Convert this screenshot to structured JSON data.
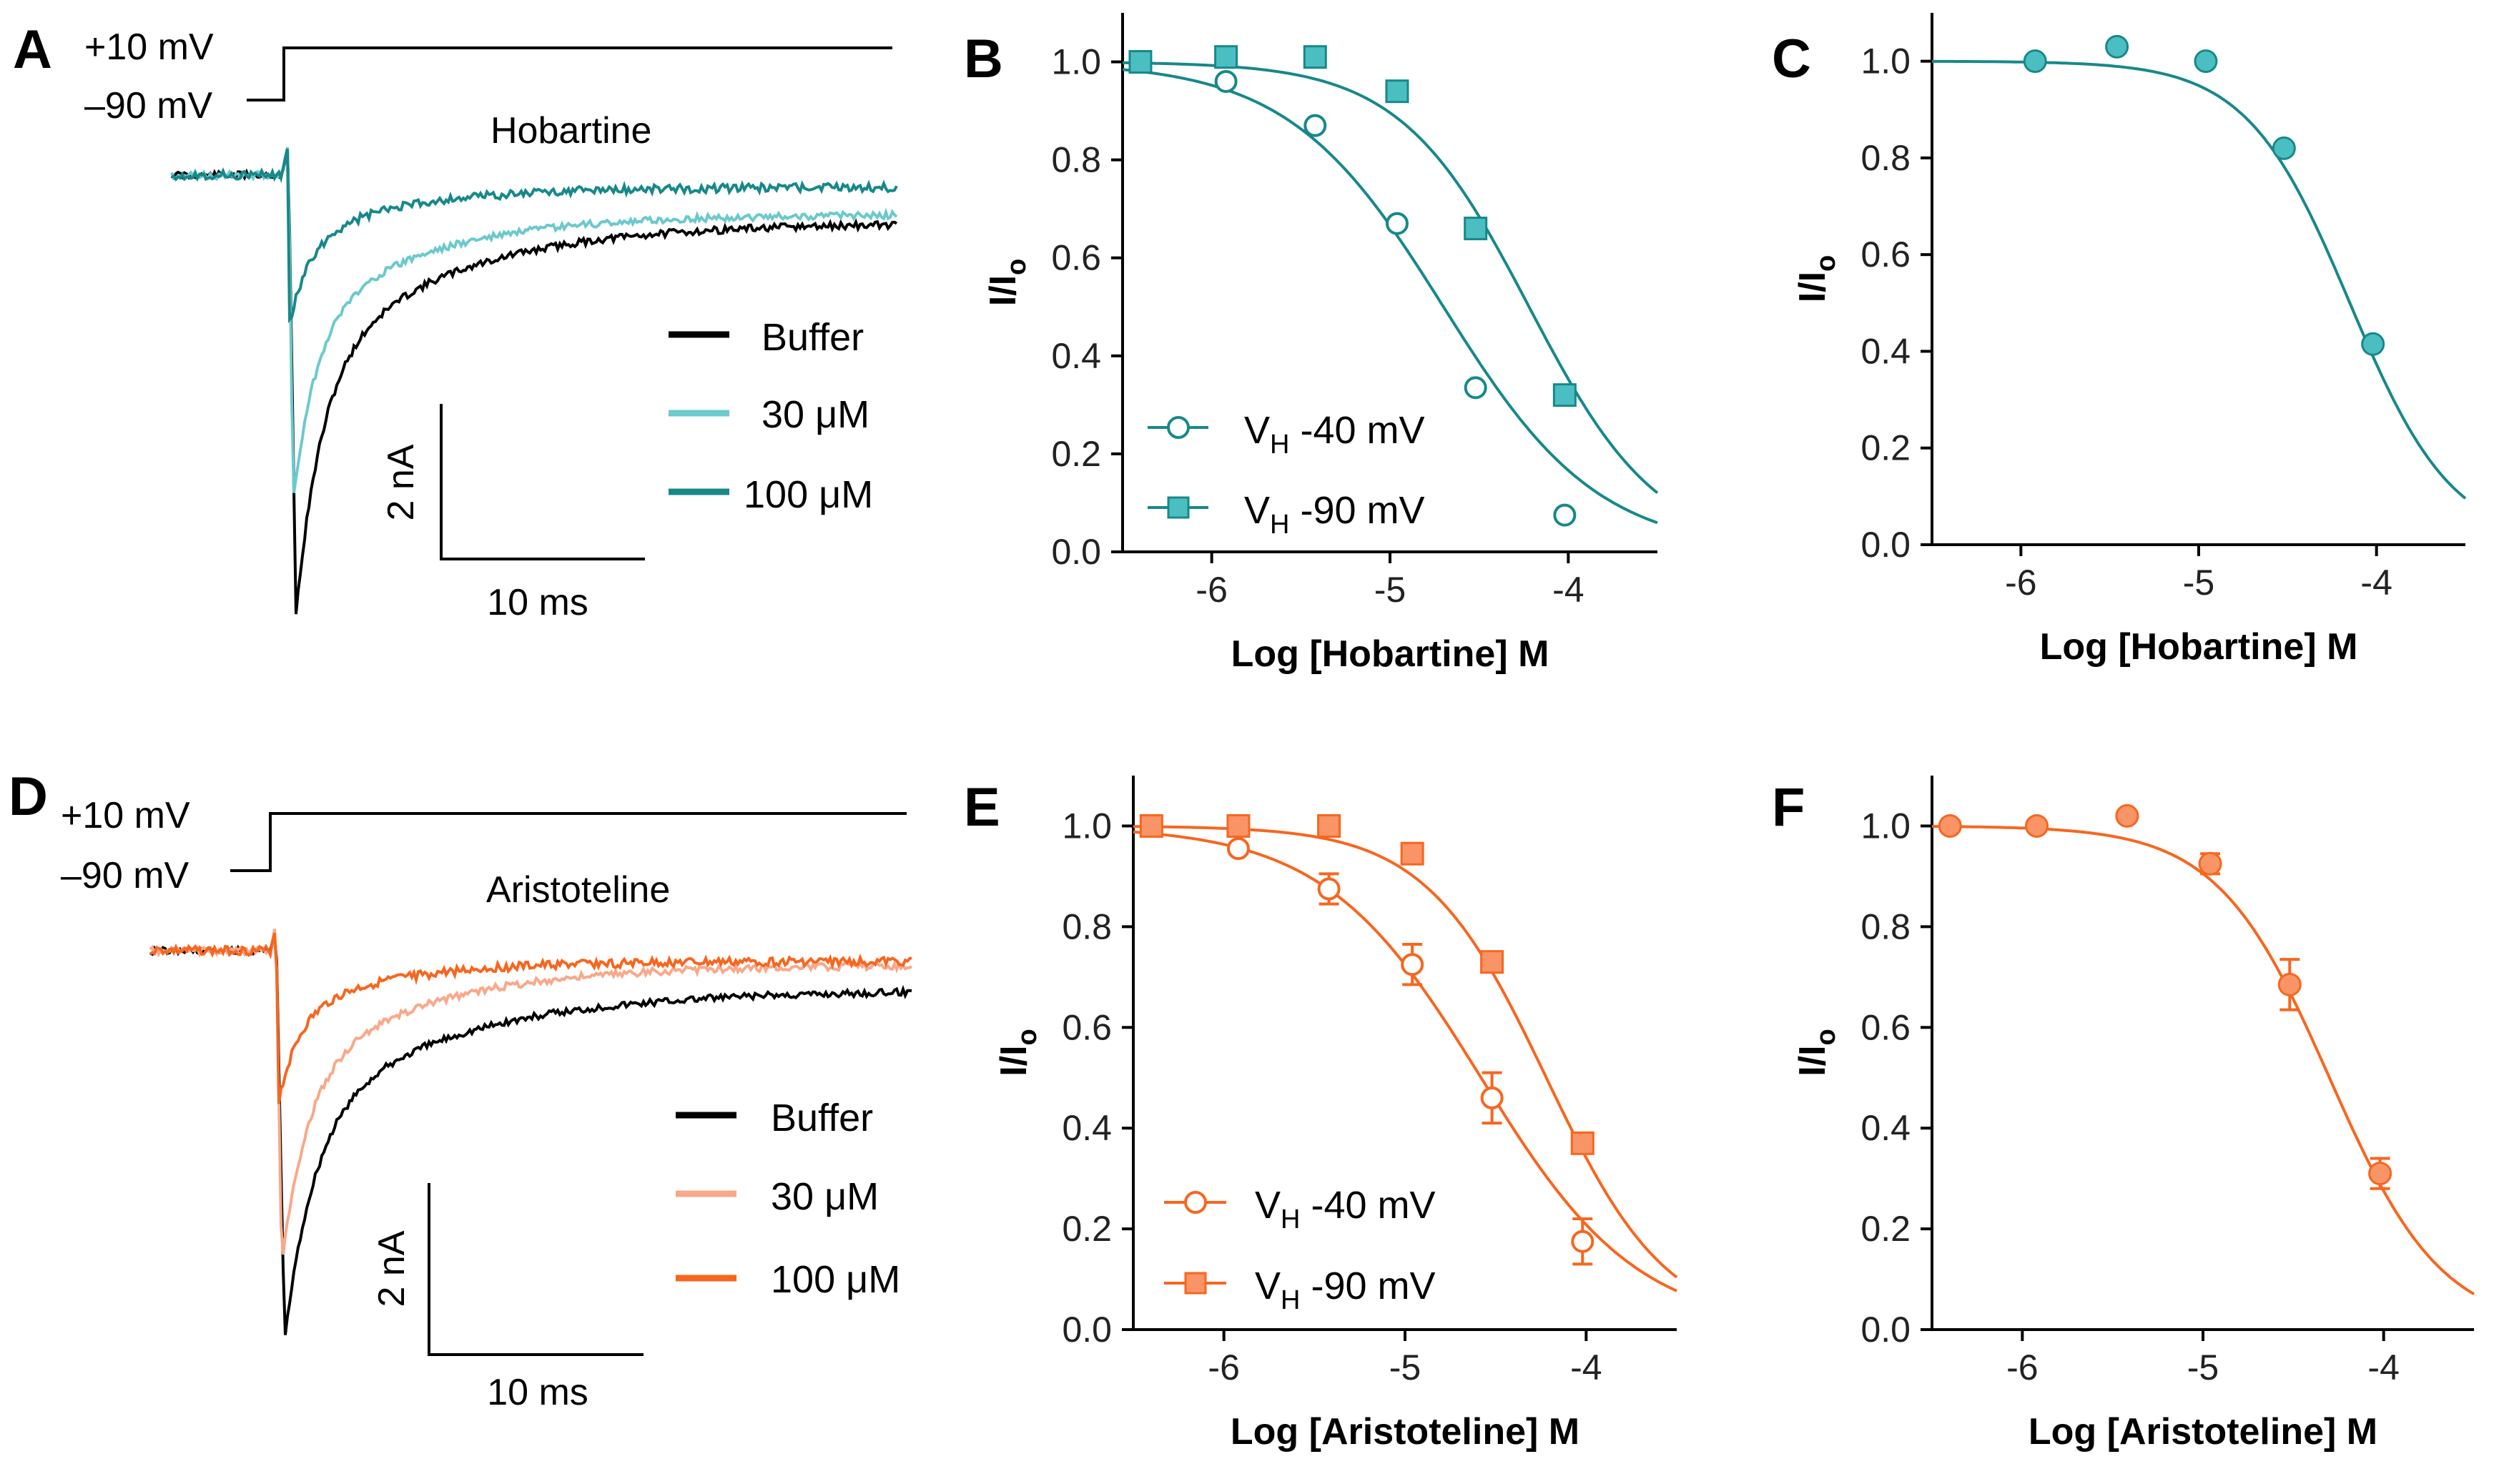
{
  "colors": {
    "teal": "#17888A",
    "teal_light": "#6CC9CC",
    "teal_fill": "#4BBEC2",
    "orange": "#F7661F",
    "orange_light": "#F9A88A",
    "orange_fill": "#F99466",
    "black": "#000000"
  },
  "panels": {
    "A": {
      "label": "A",
      "step_top": "+10 mV",
      "step_bottom": "–90 mV",
      "drug": "Hobartine",
      "legend": [
        "Buffer",
        "30 μM",
        "100 μM"
      ],
      "scale_y": "2 nA",
      "scale_x": "10 ms"
    },
    "D": {
      "label": "D",
      "step_top": "+10 mV",
      "step_bottom": "–90 mV",
      "drug": "Aristoteline",
      "legend": [
        "Buffer",
        "30 μM",
        "100 μM"
      ],
      "scale_y": "2 nA",
      "scale_x": "10 ms"
    },
    "B": {
      "label": "B"
    },
    "C": {
      "label": "C"
    },
    "E": {
      "label": "E"
    },
    "F": {
      "label": "F"
    }
  },
  "legend_curves": {
    "B": [
      {
        "v": "V",
        "sub": "H",
        "rest": " -40 mV"
      },
      {
        "v": "V",
        "sub": "H",
        "rest": " -90 mV"
      }
    ],
    "E": [
      {
        "v": "V",
        "sub": "H",
        "rest": " -40 mV"
      },
      {
        "v": "V",
        "sub": "H",
        "rest": " -90 mV"
      }
    ]
  },
  "chart_data": [
    {
      "id": "B",
      "type": "scatter",
      "title": "",
      "xlabel": "Log [Hobartine] M",
      "ylabel": "I/Io",
      "xlim": [
        -6.5,
        -3.5
      ],
      "ylim": [
        0,
        1.1
      ],
      "xticks": [
        -6,
        -5,
        -4
      ],
      "xtick_labels": [
        "-6",
        "-5",
        "-4"
      ],
      "yticks": [
        0,
        0.2,
        0.4,
        0.6,
        0.8,
        1.0
      ],
      "ytick_labels": [
        "0.0",
        "0.2",
        "0.4",
        "0.6",
        "0.8",
        "1.0"
      ],
      "series": [
        {
          "name": "VH -40 mV",
          "marker": "circle-open",
          "color": "teal",
          "x": [
            -6.4,
            -5.92,
            -5.42,
            -4.96,
            -4.52,
            -4.02
          ],
          "y": [
            1.0,
            0.96,
            0.87,
            0.67,
            0.335,
            0.075
          ],
          "fit_ic50_log": -4.7,
          "fit_hill": 1.0
        },
        {
          "name": "VH -90 mV",
          "marker": "square-filled",
          "color": "teal_fill",
          "x": [
            -6.4,
            -5.92,
            -5.42,
            -4.96,
            -4.52,
            -4.02
          ],
          "y": [
            1.0,
            1.01,
            1.01,
            0.94,
            0.66,
            0.32
          ],
          "fit_ic50_log": -4.22,
          "fit_hill": 1.2
        }
      ]
    },
    {
      "id": "C",
      "type": "scatter",
      "title": "",
      "xlabel": "Log [Hobartine] M",
      "ylabel": "I/Io",
      "xlim": [
        -6.5,
        -3.5
      ],
      "ylim": [
        0,
        1.1
      ],
      "xticks": [
        -6,
        -5,
        -4
      ],
      "xtick_labels": [
        "-6",
        "-5",
        "-4"
      ],
      "yticks": [
        0,
        0.2,
        0.4,
        0.6,
        0.8,
        1.0
      ],
      "ytick_labels": [
        "0.0",
        "0.2",
        "0.4",
        "0.6",
        "0.8",
        "1.0"
      ],
      "series": [
        {
          "name": "Hobartine",
          "marker": "circle-filled",
          "color": "teal_fill",
          "x": [
            -5.92,
            -5.46,
            -4.96,
            -4.52,
            -4.02
          ],
          "y": [
            1.0,
            1.03,
            1.0,
            0.82,
            0.415
          ],
          "fit_ic50_log": -4.15,
          "fit_hill": 1.5
        }
      ]
    },
    {
      "id": "E",
      "type": "scatter",
      "title": "",
      "xlabel": "Log [Aristoteline] M",
      "ylabel": "I/Io",
      "xlim": [
        -6.5,
        -3.5
      ],
      "ylim": [
        0,
        1.1
      ],
      "xticks": [
        -6,
        -5,
        -4
      ],
      "xtick_labels": [
        "-6",
        "-5",
        "-4"
      ],
      "yticks": [
        0,
        0.2,
        0.4,
        0.6,
        0.8,
        1.0
      ],
      "ytick_labels": [
        "0.0",
        "0.2",
        "0.4",
        "0.6",
        "0.8",
        "1.0"
      ],
      "series": [
        {
          "name": "VH -40 mV",
          "marker": "circle-open",
          "color": "orange",
          "x": [
            -6.4,
            -5.92,
            -5.42,
            -4.96,
            -4.52,
            -4.02
          ],
          "y": [
            1.0,
            0.955,
            0.875,
            0.725,
            0.46,
            0.175
          ],
          "err": [
            0.01,
            0.01,
            0.03,
            0.04,
            0.05,
            0.045
          ],
          "fit_ic50_log": -4.58,
          "fit_hill": 1.0
        },
        {
          "name": "VH -90 mV",
          "marker": "square-filled",
          "color": "orange_fill",
          "x": [
            -6.4,
            -5.92,
            -5.42,
            -4.96,
            -4.52,
            -4.02
          ],
          "y": [
            1.0,
            1.0,
            1.0,
            0.945,
            0.73,
            0.37
          ],
          "fit_ic50_log": -4.22,
          "fit_hill": 1.3
        }
      ]
    },
    {
      "id": "F",
      "type": "scatter",
      "title": "",
      "xlabel": "Log [Aristoteline] M",
      "ylabel": "I/Io",
      "xlim": [
        -6.5,
        -3.5
      ],
      "ylim": [
        0,
        1.1
      ],
      "xticks": [
        -6,
        -5,
        -4
      ],
      "xtick_labels": [
        "-6",
        "-5",
        "-4"
      ],
      "yticks": [
        0,
        0.2,
        0.4,
        0.6,
        0.8,
        1.0
      ],
      "ytick_labels": [
        "0.0",
        "0.2",
        "0.4",
        "0.6",
        "0.8",
        "1.0"
      ],
      "series": [
        {
          "name": "Aristoteline",
          "marker": "circle-filled",
          "color": "orange_fill",
          "x": [
            -6.4,
            -5.92,
            -5.42,
            -4.96,
            -4.52,
            -4.02
          ],
          "y": [
            1.0,
            1.0,
            1.02,
            0.925,
            0.685,
            0.31
          ],
          "err": [
            0.0,
            0.0,
            0.0,
            0.02,
            0.05,
            0.03
          ],
          "fit_ic50_log": -4.3,
          "fit_hill": 1.4
        }
      ]
    }
  ]
}
